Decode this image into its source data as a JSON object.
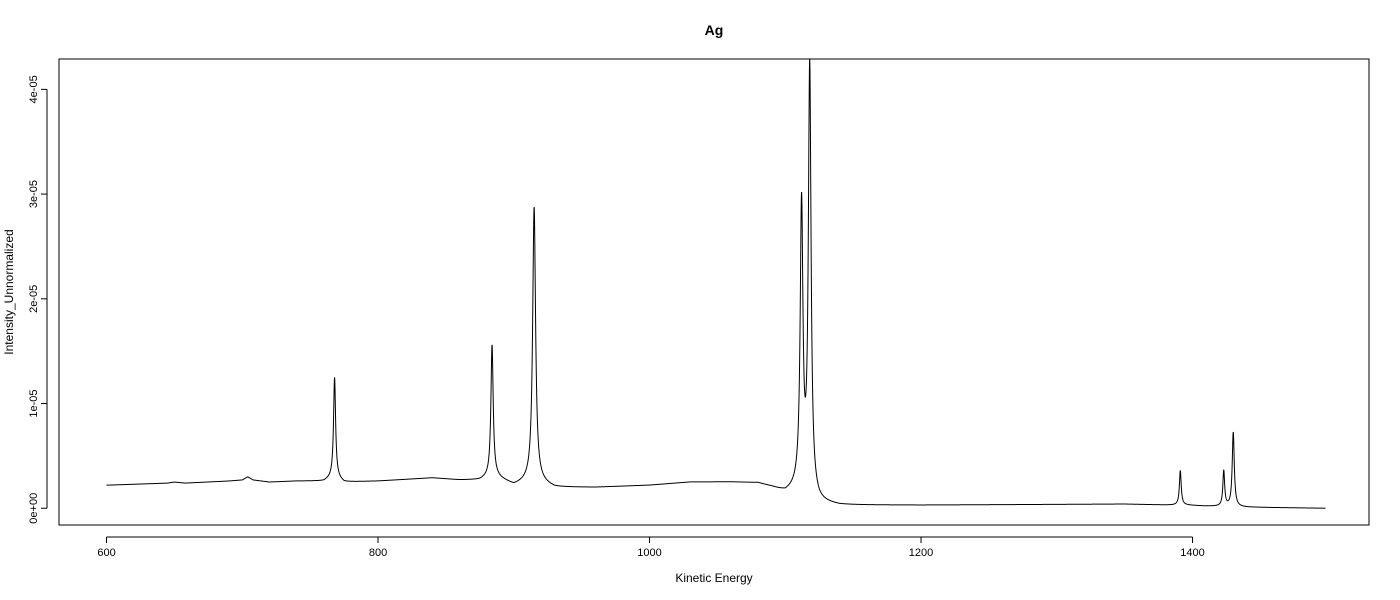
{
  "chart_data": {
    "type": "line",
    "title": "Ag",
    "xlabel": "Kinetic Energy",
    "ylabel": "Intensity_Unnormalized",
    "xlim": [
      565,
      1530
    ],
    "ylim": [
      -1.6e-06,
      4.29e-05
    ],
    "x_ticks": [
      600,
      800,
      1000,
      1200,
      1400
    ],
    "x_tick_labels": [
      "600",
      "800",
      "1000",
      "1200",
      "1400"
    ],
    "y_ticks": [
      0,
      1e-05,
      2e-05,
      3e-05,
      4e-05
    ],
    "y_tick_labels": [
      "0e+00",
      "1e-05",
      "2e-05",
      "3e-05",
      "4e-05"
    ],
    "grid": false,
    "line_color": "#000000",
    "series": [
      {
        "x_range": [
          600,
          1498
        ],
        "background": [
          [
            600,
            2.2e-06
          ],
          [
            645,
            2.4e-06
          ],
          [
            650,
            2.5e-06
          ],
          [
            658,
            2.4e-06
          ],
          [
            690,
            2.6e-06
          ],
          [
            700,
            2.7e-06
          ],
          [
            704,
            3e-06
          ],
          [
            708,
            2.7e-06
          ],
          [
            720,
            2.5e-06
          ],
          [
            740,
            2.6e-06
          ],
          [
            760,
            2.6e-06
          ],
          [
            768,
            3e-06
          ],
          [
            775,
            2.5e-06
          ],
          [
            800,
            2.6e-06
          ],
          [
            840,
            2.9e-06
          ],
          [
            860,
            2.7e-06
          ],
          [
            875,
            2.7e-06
          ],
          [
            885,
            3.1e-06
          ],
          [
            900,
            2.2e-06
          ],
          [
            910,
            2.5e-06
          ],
          [
            920,
            2.4e-06
          ],
          [
            930,
            2e-06
          ],
          [
            960,
            2e-06
          ],
          [
            1000,
            2.2e-06
          ],
          [
            1030,
            2.5e-06
          ],
          [
            1060,
            2.5e-06
          ],
          [
            1080,
            2.4e-06
          ],
          [
            1090,
            2e-06
          ],
          [
            1100,
            1.5e-06
          ],
          [
            1110,
            1.8e-06
          ],
          [
            1125,
            5e-07
          ],
          [
            1140,
            3e-07
          ],
          [
            1200,
            3e-07
          ],
          [
            1350,
            4e-07
          ],
          [
            1385,
            3e-07
          ],
          [
            1395,
            3e-07
          ],
          [
            1410,
            2e-07
          ],
          [
            1440,
            1e-07
          ],
          [
            1498,
            0.0
          ]
        ],
        "peaks": [
          [
            768,
            9.5e-06,
            0.9
          ],
          [
            884,
            1.25e-05,
            1.0
          ],
          [
            915,
            2.63e-05,
            1.3
          ],
          [
            1112,
            2.7e-05,
            1.2
          ],
          [
            1118,
            4.08e-05,
            1.2
          ],
          [
            1391,
            3.3e-06,
            0.8
          ],
          [
            1423,
            3.4e-06,
            0.8
          ],
          [
            1430,
            7.1e-06,
            0.9
          ]
        ]
      }
    ]
  }
}
